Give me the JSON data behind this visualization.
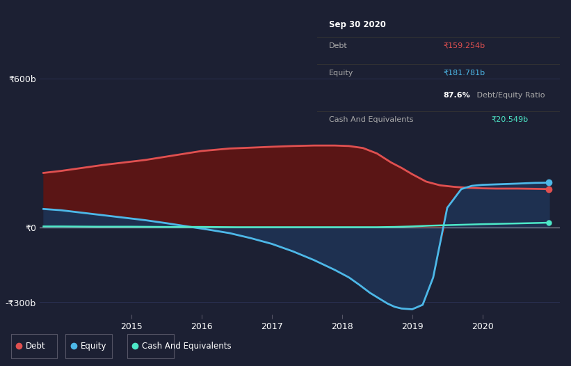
{
  "background_color": "#1c2033",
  "plot_bg_color": "#1c2033",
  "ylabel_600": "₹600b",
  "ylabel_0": "₹0",
  "ylabel_neg300": "-₹300b",
  "ylim": [
    -350,
    650
  ],
  "xlim": [
    2013.7,
    2021.1
  ],
  "debt_color": "#e05050",
  "equity_color": "#4db8e8",
  "cash_color": "#4de8c8",
  "fill_debt_color": "#5a1515",
  "fill_equity_neg_color": "#1a2a4a",
  "grid_color": "#2a3050",
  "zero_line_color": "#cccccc",
  "debt_x": [
    2013.75,
    2014.0,
    2014.3,
    2014.6,
    2014.9,
    2015.2,
    2015.6,
    2016.0,
    2016.4,
    2016.75,
    2017.0,
    2017.3,
    2017.6,
    2017.9,
    2018.1,
    2018.3,
    2018.5,
    2018.7,
    2018.85,
    2019.0,
    2019.2,
    2019.4,
    2019.6,
    2019.8,
    2020.0,
    2020.2,
    2020.5,
    2020.75,
    2020.95
  ],
  "debt_y": [
    220,
    228,
    240,
    252,
    262,
    272,
    290,
    308,
    318,
    322,
    325,
    328,
    330,
    330,
    328,
    320,
    298,
    262,
    240,
    215,
    185,
    170,
    164,
    160,
    158,
    157,
    157,
    156,
    155
  ],
  "equity_x": [
    2013.75,
    2014.0,
    2014.3,
    2014.6,
    2014.9,
    2015.2,
    2015.5,
    2015.8,
    2016.1,
    2016.4,
    2016.7,
    2017.0,
    2017.3,
    2017.6,
    2017.9,
    2018.1,
    2018.25,
    2018.4,
    2018.55,
    2018.65,
    2018.75,
    2018.85,
    2019.0,
    2019.15,
    2019.3,
    2019.5,
    2019.7,
    2019.85,
    2020.0,
    2020.2,
    2020.5,
    2020.75,
    2020.95
  ],
  "equity_y": [
    75,
    70,
    60,
    50,
    40,
    30,
    18,
    5,
    -8,
    -22,
    -42,
    -65,
    -95,
    -130,
    -170,
    -200,
    -230,
    -262,
    -288,
    -305,
    -318,
    -325,
    -328,
    -310,
    -200,
    80,
    155,
    168,
    172,
    174,
    177,
    180,
    181
  ],
  "cash_x": [
    2013.75,
    2014.0,
    2014.5,
    2015.0,
    2015.5,
    2016.0,
    2016.5,
    2017.0,
    2017.5,
    2018.0,
    2018.5,
    2018.75,
    2019.0,
    2019.25,
    2019.5,
    2019.75,
    2020.0,
    2020.5,
    2020.95
  ],
  "cash_y": [
    5,
    5,
    4,
    4,
    3,
    3,
    2,
    2,
    2,
    2,
    2,
    3,
    5,
    8,
    10,
    12,
    14,
    17,
    20
  ],
  "tooltip": {
    "title": "Sep 30 2020",
    "debt_label": "Debt",
    "debt_value": "₹159.254b",
    "equity_label": "Equity",
    "equity_value": "₹181.781b",
    "ratio_bold": "87.6%",
    "ratio_text": " Debt/Equity Ratio",
    "cash_label": "Cash And Equivalents",
    "cash_value": "₹20.549b"
  },
  "legend_items": [
    "Debt",
    "Equity",
    "Cash And Equivalents"
  ],
  "legend_colors": [
    "#e05050",
    "#4db8e8",
    "#4de8c8"
  ]
}
